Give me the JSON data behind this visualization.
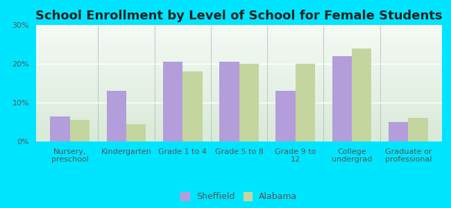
{
  "title": "School Enrollment by Level of School for Female Students",
  "categories": [
    "Nursery,\npreschool",
    "Kindergarten",
    "Grade 1 to 4",
    "Grade 5 to 8",
    "Grade 9 to\n12",
    "College\nundergrad",
    "Graduate or\nprofessional"
  ],
  "sheffield": [
    6.5,
    13.0,
    20.5,
    20.5,
    13.0,
    22.0,
    5.0
  ],
  "alabama": [
    5.5,
    4.5,
    18.0,
    20.0,
    20.0,
    24.0,
    6.0
  ],
  "sheffield_color": "#b39ddb",
  "alabama_color": "#c5d5a0",
  "background_outer": "#00e5ff",
  "background_inner_gradient_top": "#f5faf5",
  "background_inner_gradient_bottom": "#d8ead8",
  "ylim": [
    0,
    30
  ],
  "yticks": [
    0,
    10,
    20,
    30
  ],
  "yticklabels": [
    "0%",
    "10%",
    "20%",
    "30%"
  ],
  "legend_sheffield": "Sheffield",
  "legend_alabama": "Alabama",
  "title_fontsize": 13,
  "tick_fontsize": 8,
  "legend_fontsize": 9,
  "grid_color": "#ffffff",
  "text_color": "#555555"
}
